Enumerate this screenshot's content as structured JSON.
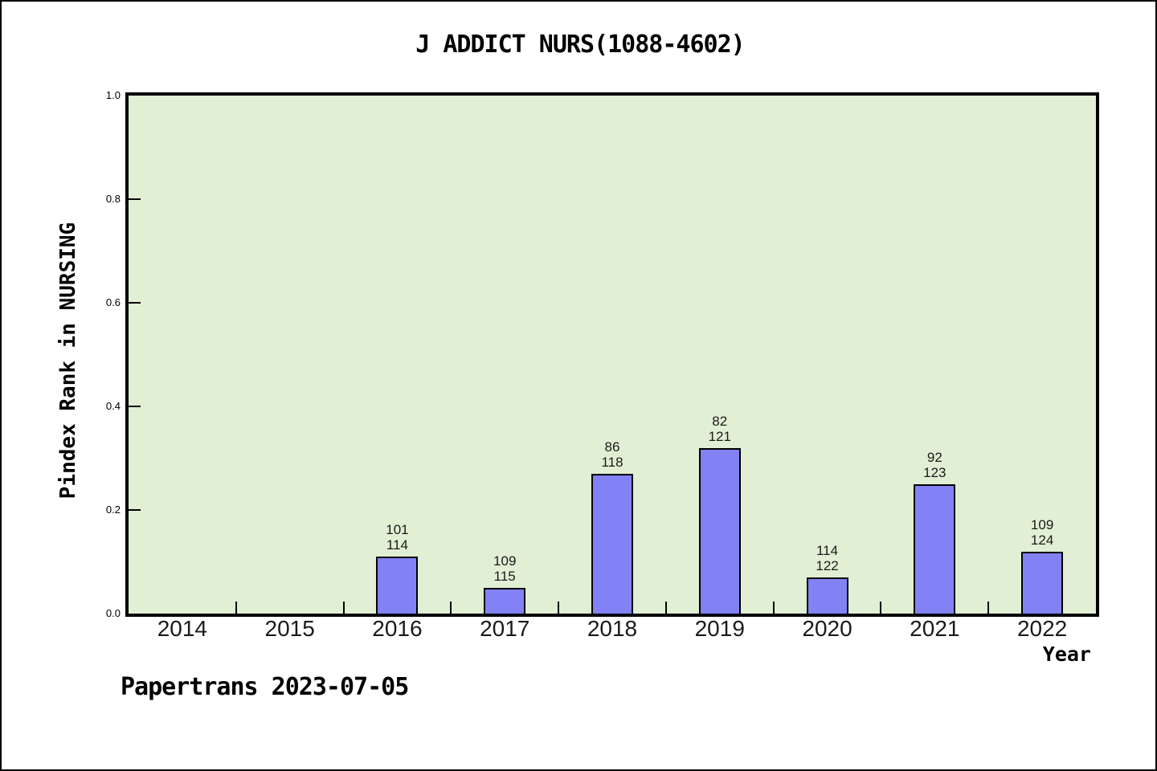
{
  "page": {
    "footer": "Papertrans 2023-07-05"
  },
  "chart_data": {
    "type": "bar",
    "title": "J ADDICT NURS(1088-4602)",
    "xlabel": "Year",
    "ylabel": "Pindex Rank in NURSING",
    "categories": [
      "2014",
      "2015",
      "2016",
      "2017",
      "2018",
      "2019",
      "2020",
      "2021",
      "2022"
    ],
    "bars": [
      {
        "year": "2016",
        "rank": "101",
        "total": "114",
        "value": 0.11
      },
      {
        "year": "2017",
        "rank": "109",
        "total": "115",
        "value": 0.05
      },
      {
        "year": "2018",
        "rank": "86",
        "total": "118",
        "value": 0.27
      },
      {
        "year": "2019",
        "rank": "82",
        "total": "121",
        "value": 0.32
      },
      {
        "year": "2020",
        "rank": "114",
        "total": "122",
        "value": 0.07
      },
      {
        "year": "2021",
        "rank": "92",
        "total": "123",
        "value": 0.25
      },
      {
        "year": "2022",
        "rank": "109",
        "total": "124",
        "value": 0.12
      }
    ],
    "ylim": [
      0.0,
      1.0
    ],
    "yticks": [
      "0.0",
      "0.2",
      "0.4",
      "0.6",
      "0.8",
      "1.0"
    ],
    "grid": false,
    "legend": "none",
    "colors": {
      "bar_fill": "#8282f5",
      "bar_border": "#000000",
      "plot_background": "#e1efd4",
      "axis": "#000000",
      "page_background": "#ffffff"
    }
  }
}
